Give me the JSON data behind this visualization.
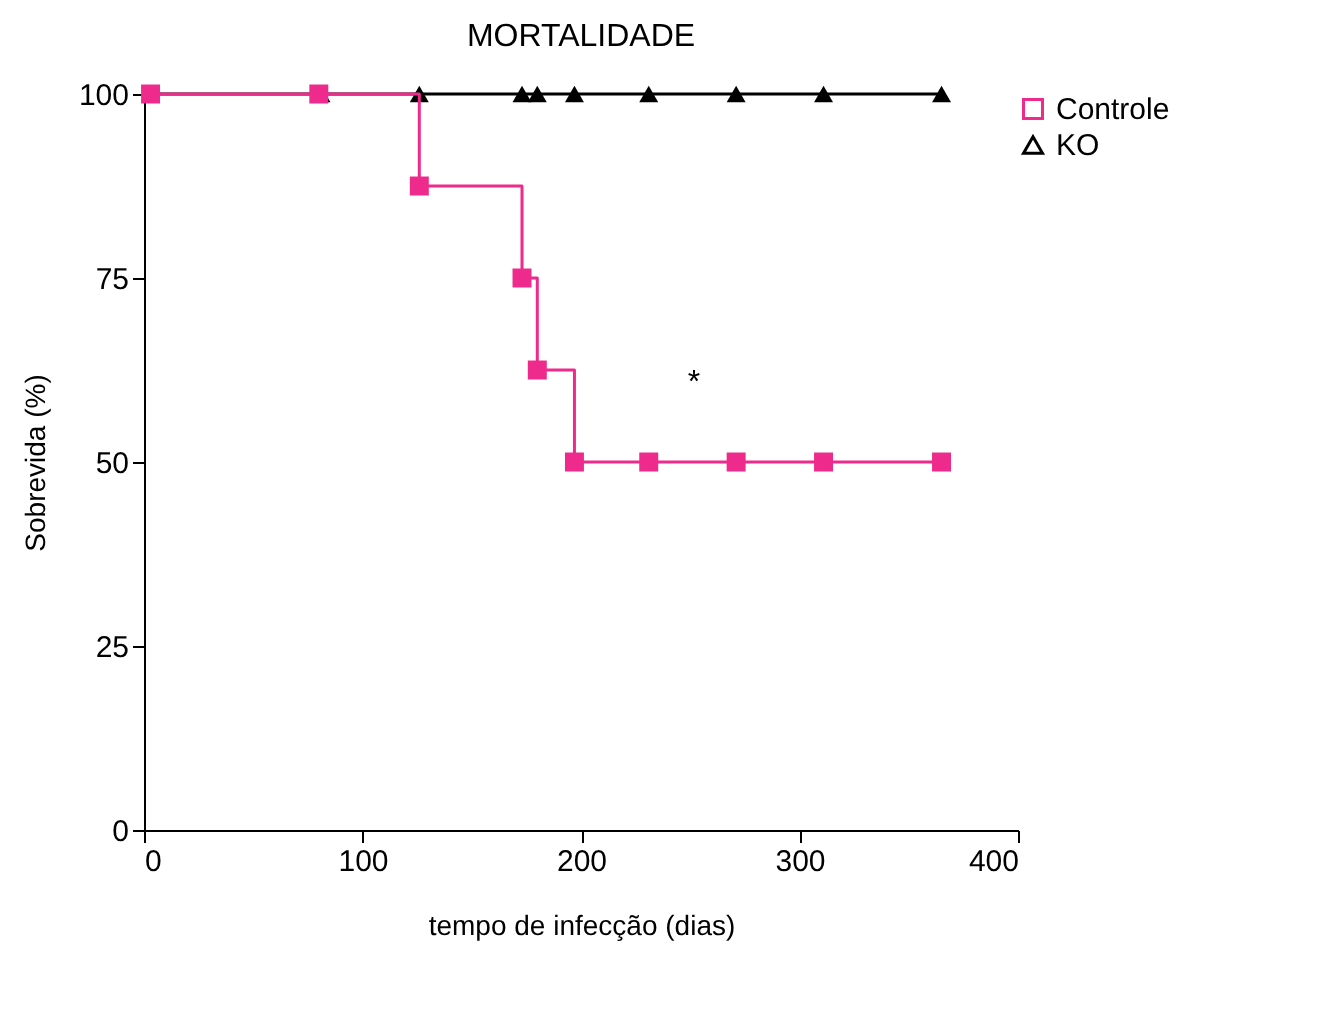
{
  "chart_data": {
    "type": "step",
    "title": "MORTALIDADE",
    "xlabel": "tempo de infecção (dias)",
    "ylabel": "Sobrevida (%)",
    "xlim": [
      0,
      400
    ],
    "xticks": [
      0,
      100,
      200,
      300,
      400
    ],
    "ylim": [
      0,
      100
    ],
    "yticks": [
      0,
      25,
      50,
      75,
      100
    ],
    "grid": false,
    "legend": "top right",
    "line_style": "solid",
    "series": [
      {
        "name": "Controle",
        "color": "#ee2a8c",
        "marker": "square",
        "x": [
          3,
          80,
          126,
          173,
          180,
          197,
          231,
          271,
          311,
          365
        ],
        "values": [
          100,
          100,
          87.5,
          75,
          62.5,
          50,
          50,
          50,
          50,
          50
        ]
      },
      {
        "name": "KO",
        "color": "#000000",
        "marker": "triangle",
        "x": [
          3,
          81,
          126,
          173,
          180,
          197,
          231,
          271,
          311,
          365
        ],
        "values": [
          100,
          100,
          100,
          100,
          100,
          100,
          100,
          100,
          100,
          100
        ]
      }
    ],
    "annotations": [
      "*"
    ]
  }
}
